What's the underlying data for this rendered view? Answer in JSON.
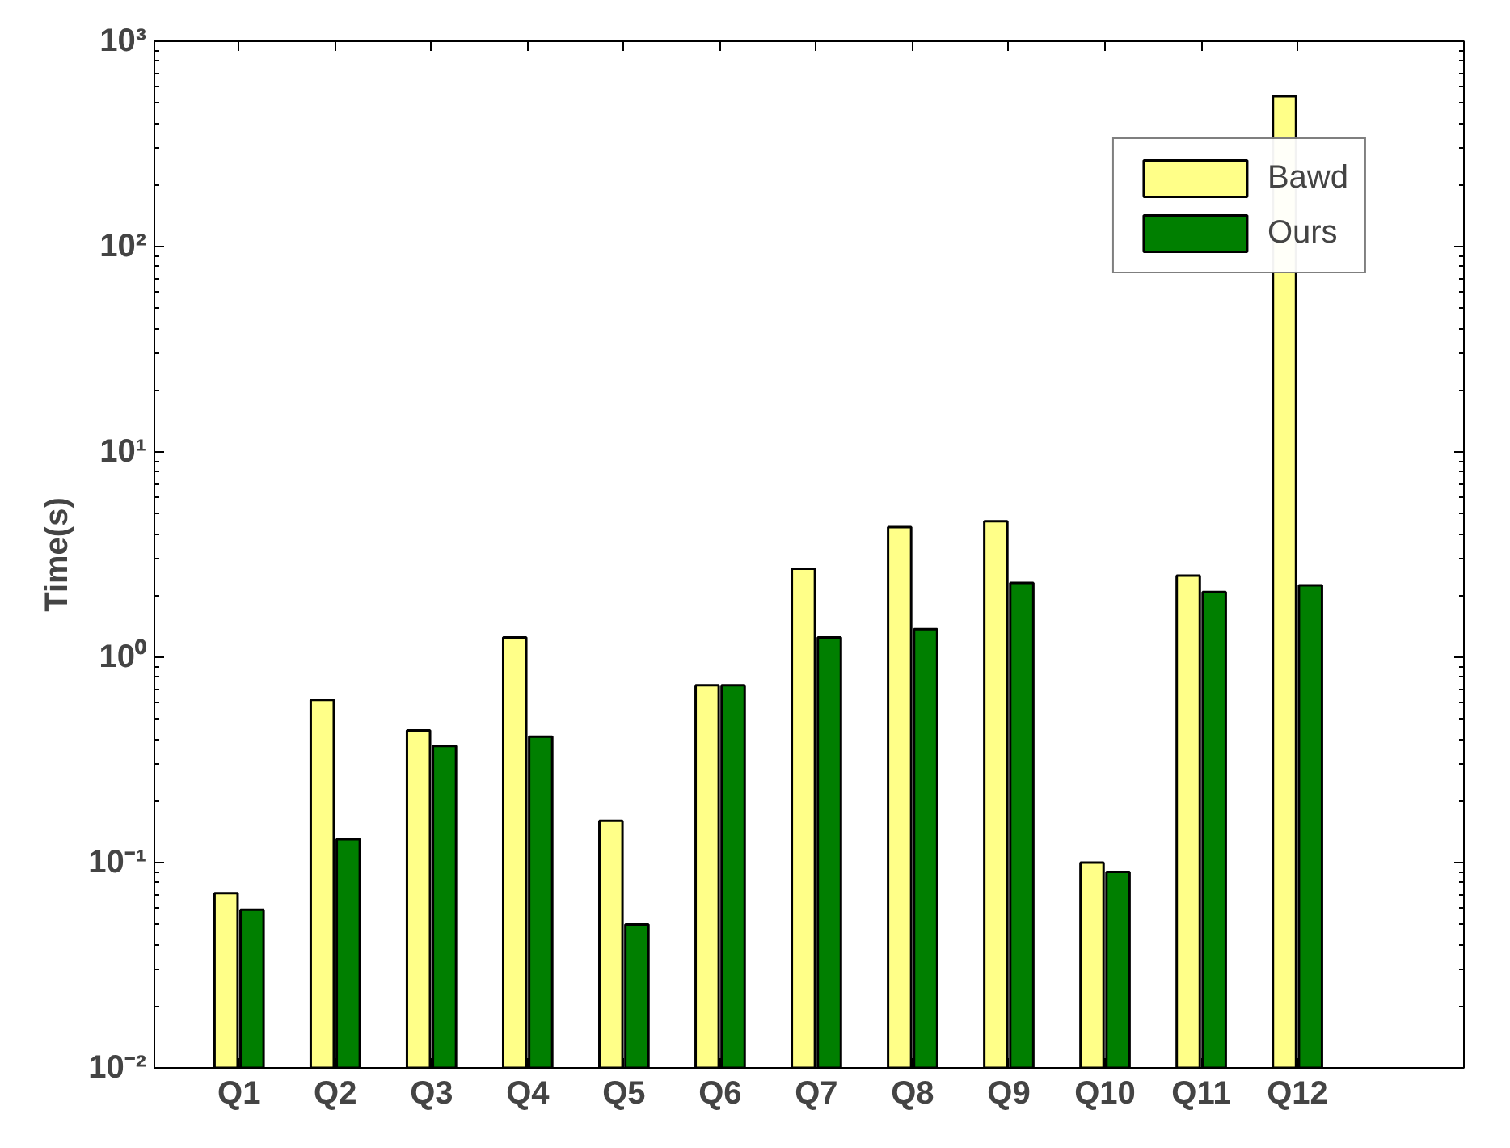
{
  "chart_data": {
    "type": "bar",
    "ylabel": "Time(s)",
    "log": true,
    "grid": false,
    "legend": "top right",
    "categories": [
      "Q1",
      "Q2",
      "Q3",
      "Q4",
      "Q5",
      "Q6",
      "Q7",
      "Q8",
      "Q9",
      "Q10",
      "Q11",
      "Q12"
    ],
    "ylim": [
      0.01,
      1000
    ],
    "yticks": [
      {
        "value": 0.01,
        "label": "10⁻²"
      },
      {
        "value": 0.1,
        "label": "10⁻¹"
      },
      {
        "value": 1,
        "label": "10⁰"
      },
      {
        "value": 10,
        "label": "10¹"
      },
      {
        "value": 100,
        "label": "10²"
      },
      {
        "value": 1000,
        "label": "10³"
      }
    ],
    "series": [
      {
        "name": "Bawd",
        "color": "#ffff88",
        "values": [
          0.071,
          0.62,
          0.44,
          1.25,
          0.16,
          0.73,
          2.7,
          4.3,
          4.6,
          0.1,
          2.5,
          540
        ]
      },
      {
        "name": "Ours",
        "color": "#007f00",
        "values": [
          0.059,
          0.13,
          0.37,
          0.41,
          0.05,
          0.73,
          1.25,
          1.37,
          2.3,
          0.09,
          2.08,
          2.24
        ]
      }
    ]
  }
}
